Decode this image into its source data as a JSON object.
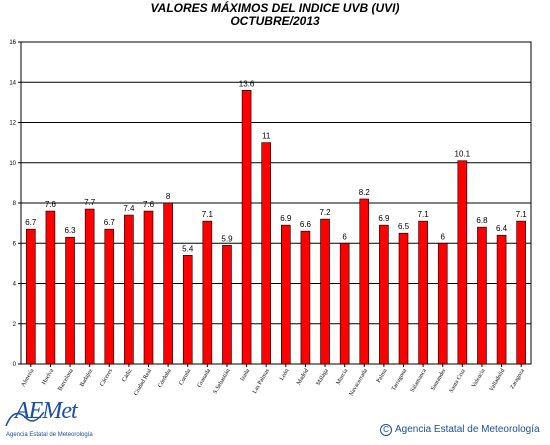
{
  "chart_data": {
    "type": "bar",
    "title": "VALORES MÁXIMOS DEL INDICE UVB (UVI)",
    "subtitle": "OCTUBRE/2013",
    "xlabel": "",
    "ylabel": "",
    "ylim": [
      0,
      16
    ],
    "yticks": [
      "0",
      "2",
      "4",
      "6",
      "8",
      "10",
      "12",
      "14",
      "16"
    ],
    "grid": true,
    "bar_color": "#ff0000",
    "categories": [
      "Almería",
      "Huelva",
      "Barcelona",
      "Badajoz",
      "Cáceres",
      "Cádiz",
      "Ciudad Real",
      "Córdoba",
      "Coruña",
      "Granada",
      "S.Sebastián",
      "Izaña",
      "Las Palmas",
      "León",
      "Madrid",
      "Málaga",
      "Murcia",
      "Navacerrada",
      "Palma",
      "Tarragona",
      "Salamanca",
      "Santander",
      "Santa Cruz",
      "Valencia",
      "Valladolid",
      "Zaragoza"
    ],
    "values": [
      6.7,
      7.6,
      6.3,
      7.7,
      6.7,
      7.4,
      7.6,
      8,
      5.4,
      7.1,
      5.9,
      13.6,
      11,
      6.9,
      6.6,
      7.2,
      6,
      8.2,
      6.9,
      6.5,
      7.1,
      6,
      10.1,
      6.8,
      6.4,
      7.1
    ],
    "labels": [
      "6.7",
      "7.6",
      "6.3",
      "7.7",
      "6.7",
      "7.4",
      "7.6",
      "8",
      "5.4",
      "7.1",
      "5.9",
      "13.6",
      "11",
      "6.9",
      "6.6",
      "7.2",
      "6",
      "8.2",
      "6.9",
      "6.5",
      "7.1",
      "6",
      "10.1",
      "6.8",
      "6.4",
      "7.1"
    ]
  },
  "branding": {
    "logo_text": "AEMet",
    "logo_subtitle": "Agencia Estatal de Meteorología",
    "copyright_symbol": "C",
    "copyright_text": "Agencia Estatal de Meteorología",
    "brand_color": "#1a4fa3"
  }
}
